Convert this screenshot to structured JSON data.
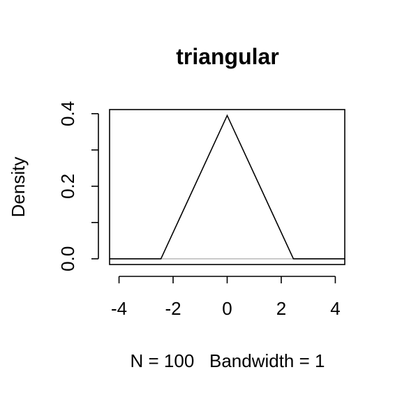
{
  "chart_data": {
    "type": "line",
    "title": "triangular",
    "xlabel": "N = 100   Bandwidth = 1",
    "ylabel": "Density",
    "xlim": [
      -4.35,
      4.35
    ],
    "ylim": [
      -0.0158,
      0.4113
    ],
    "x_ticks": [
      -4,
      -2,
      0,
      2,
      4
    ],
    "x_tick_labels": [
      "-4",
      "-2",
      "0",
      "2",
      "4"
    ],
    "y_ticks": [
      0.0,
      0.1,
      0.2,
      0.3,
      0.4
    ],
    "y_tick_labels": [
      "0.0",
      "",
      "0.2",
      "",
      "0.4"
    ],
    "grid": false,
    "baseline": 0,
    "series": [
      {
        "x": [
          -4.35,
          -2.45,
          0.0,
          2.45,
          4.35
        ],
        "y": [
          0.0,
          0.0,
          0.395,
          0.0,
          0.0
        ]
      }
    ]
  },
  "colors": {
    "line": "#000000",
    "baseline": "#bebebe",
    "frame": "#000000",
    "background": "#ffffff"
  }
}
